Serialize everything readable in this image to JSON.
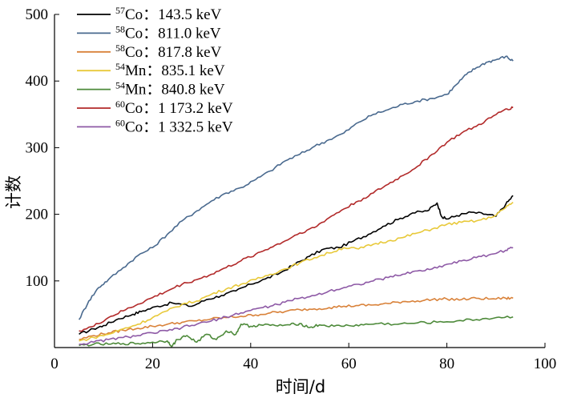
{
  "chart_data": {
    "type": "line",
    "xlabel": "时间/d",
    "ylabel": "计数",
    "xlim": [
      0,
      100
    ],
    "ylim": [
      0,
      500
    ],
    "xticks": [
      "0",
      "20",
      "40",
      "60",
      "80",
      "100"
    ],
    "yticks": [
      "100",
      "200",
      "300",
      "400",
      "500"
    ],
    "legend_position": "top-left",
    "series": [
      {
        "name": "57Co: 143.5 keV",
        "sup": "57",
        "elem": "Co",
        "energy": "：143.5 keV",
        "color": "#000000",
        "x": [
          5,
          8,
          10,
          13,
          16,
          18,
          21,
          24,
          28,
          31,
          34,
          37,
          40,
          43,
          46,
          49,
          52,
          55,
          58,
          61,
          64,
          67,
          70,
          73,
          76,
          78,
          79,
          80,
          82,
          85,
          88,
          90,
          92,
          93.5
        ],
        "y": [
          20,
          28,
          33,
          43,
          50,
          55,
          62,
          67,
          62,
          72,
          78,
          85,
          95,
          103,
          112,
          125,
          137,
          148,
          150,
          160,
          170,
          182,
          192,
          202,
          205,
          217,
          196,
          193,
          198,
          203,
          200,
          197,
          215,
          228
        ]
      },
      {
        "name": "58Co: 811.0 keV",
        "sup": "58",
        "elem": "Co",
        "energy": "：811.0 keV",
        "color": "#4a6a8f",
        "x": [
          5,
          7,
          9,
          11,
          14,
          17,
          20,
          23,
          26,
          29,
          32,
          35,
          38,
          41,
          44,
          47,
          50,
          53,
          56,
          59,
          62,
          65,
          68,
          71,
          74,
          77,
          80,
          82,
          84,
          86,
          88,
          90,
          92,
          93.5
        ],
        "y": [
          42,
          70,
          90,
          102,
          120,
          138,
          150,
          170,
          190,
          205,
          220,
          232,
          240,
          252,
          265,
          280,
          290,
          302,
          312,
          322,
          338,
          350,
          357,
          365,
          370,
          374,
          380,
          395,
          410,
          420,
          428,
          432,
          437,
          430
        ]
      },
      {
        "name": "58Co: 817.8 keV",
        "sup": "58",
        "elem": "Co",
        "energy": "：817.8 keV",
        "color": "#d9823a",
        "x": [
          5,
          8,
          11,
          14,
          17,
          20,
          23,
          26,
          29,
          32,
          35,
          38,
          41,
          44,
          47,
          50,
          53,
          56,
          59,
          62,
          65,
          68,
          71,
          74,
          77,
          80,
          83,
          86,
          89,
          92,
          93.5
        ],
        "y": [
          12,
          18,
          22,
          26,
          29,
          32,
          35,
          38,
          40,
          43,
          45,
          47,
          49,
          52,
          54,
          57,
          58,
          60,
          62,
          63,
          64,
          66,
          69,
          70,
          72,
          73,
          72,
          74,
          73,
          74,
          74
        ]
      },
      {
        "name": "54Mn: 835.1 keV",
        "sup": "54",
        "elem": "Mn",
        "energy": "：835.1 keV",
        "color": "#e8c93a",
        "x": [
          5,
          8,
          11,
          14,
          17,
          20,
          23,
          26,
          29,
          32,
          35,
          38,
          41,
          44,
          47,
          50,
          53,
          56,
          59,
          62,
          65,
          68,
          71,
          74,
          77,
          80,
          83,
          86,
          89,
          92,
          93.5
        ],
        "y": [
          10,
          15,
          20,
          28,
          35,
          45,
          55,
          65,
          70,
          80,
          88,
          95,
          102,
          110,
          118,
          127,
          135,
          142,
          150,
          148,
          155,
          160,
          165,
          172,
          178,
          185,
          188,
          190,
          195,
          210,
          218
        ]
      },
      {
        "name": "54Mn: 840.8 keV",
        "sup": "54",
        "elem": "Mn",
        "energy": "：840.8 keV",
        "color": "#4d8a3a",
        "x": [
          5,
          8,
          11,
          14,
          17,
          20,
          23,
          24,
          25,
          27,
          29,
          31,
          33,
          35,
          37,
          38,
          40,
          42,
          45,
          48,
          50,
          52,
          54,
          57,
          60,
          63,
          66,
          70,
          74,
          78,
          82,
          86,
          90,
          93.5
        ],
        "y": [
          3,
          5,
          5,
          6,
          6,
          8,
          10,
          2,
          12,
          18,
          8,
          20,
          12,
          25,
          20,
          35,
          32,
          34,
          33,
          34,
          36,
          30,
          34,
          32,
          33,
          34,
          36,
          35,
          37,
          38,
          40,
          42,
          45,
          46
        ]
      },
      {
        "name": "60Co: 1 173.2 keV",
        "sup": "60",
        "elem": "Co",
        "energy": "：1 173.2 keV",
        "color": "#b22a2a",
        "x": [
          5,
          8,
          11,
          14,
          17,
          20,
          23,
          26,
          29,
          32,
          35,
          38,
          41,
          44,
          47,
          50,
          53,
          56,
          59,
          62,
          65,
          68,
          71,
          74,
          77,
          80,
          83,
          86,
          89,
          92,
          93.5
        ],
        "y": [
          25,
          32,
          45,
          55,
          65,
          75,
          85,
          95,
          102,
          110,
          120,
          130,
          140,
          150,
          160,
          172,
          180,
          195,
          208,
          220,
          232,
          245,
          258,
          272,
          290,
          308,
          322,
          332,
          345,
          358,
          360
        ]
      },
      {
        "name": "60Co: 1 332.5 keV",
        "sup": "60",
        "elem": "Co",
        "energy": "：1 332.5 keV",
        "color": "#8e5aa6",
        "x": [
          5,
          8,
          11,
          14,
          17,
          20,
          23,
          26,
          29,
          32,
          35,
          38,
          41,
          44,
          47,
          50,
          53,
          56,
          59,
          62,
          65,
          68,
          71,
          74,
          77,
          80,
          83,
          86,
          89,
          92,
          93.5
        ],
        "y": [
          5,
          8,
          12,
          15,
          18,
          22,
          25,
          30,
          35,
          40,
          46,
          52,
          58,
          62,
          68,
          74,
          78,
          85,
          90,
          95,
          100,
          105,
          110,
          115,
          118,
          125,
          130,
          135,
          140,
          146,
          150
        ]
      }
    ]
  }
}
